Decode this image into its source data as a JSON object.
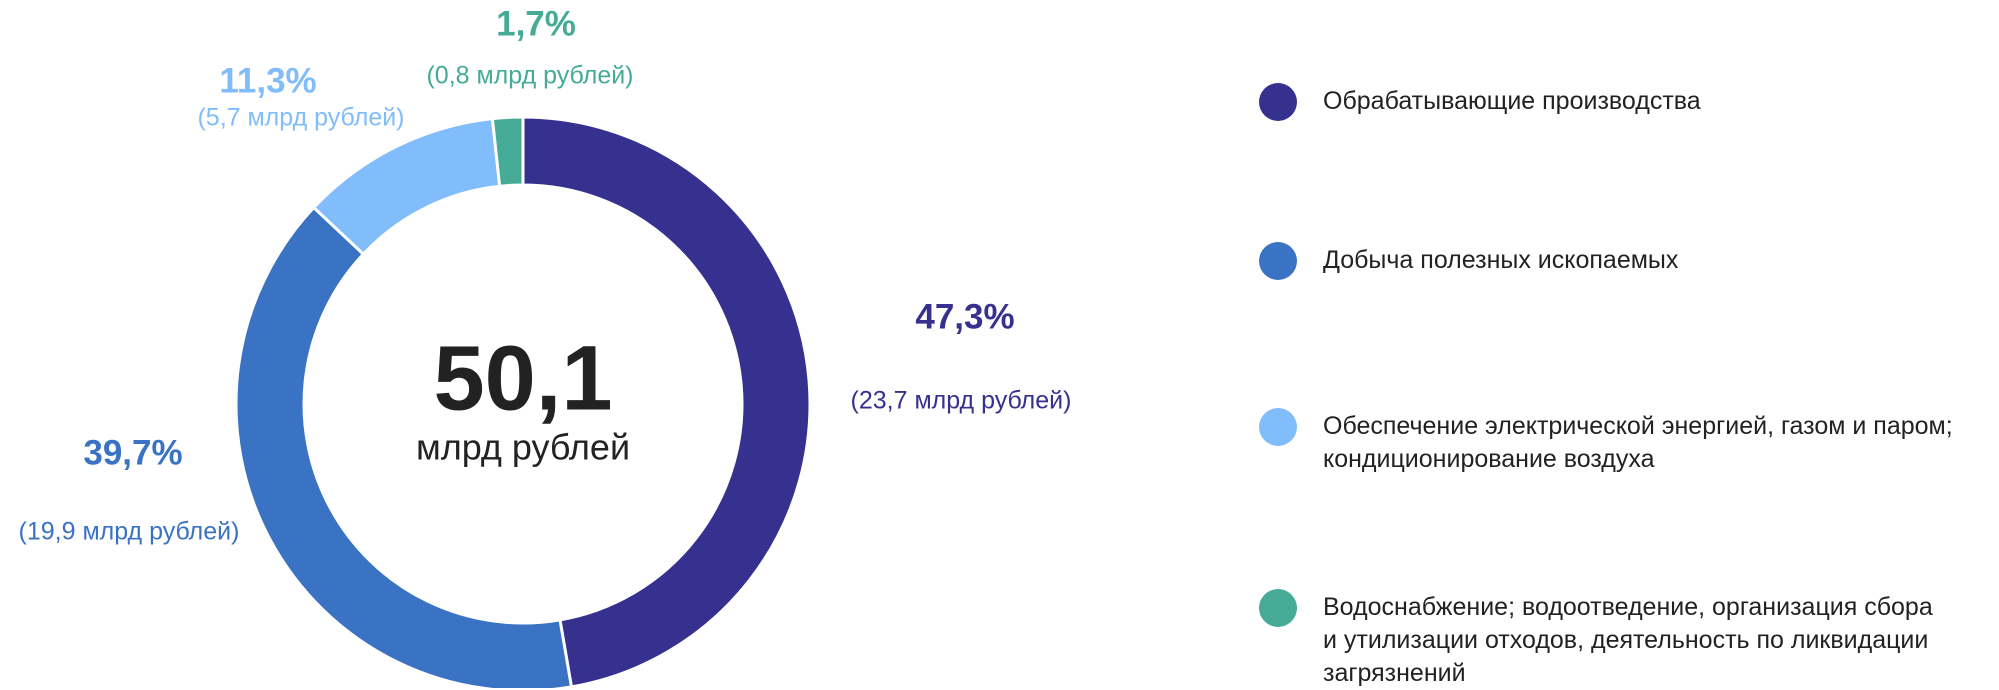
{
  "chart_data": {
    "type": "donut",
    "categories": [
      "Обрабатывающие производства",
      "Добыча полезных ископаемых",
      "Обеспечение электрической энергией, газом и паром;\nкондиционирование воздуха",
      "Водоснабжение; водоотведение, организация сбора\nи утилизации отходов, деятельность по ликвидации\nзагрязнений"
    ],
    "values": [
      47.3,
      39.7,
      11.3,
      1.7
    ],
    "value_labels": [
      "47,3%",
      "39,7%",
      "11,3%",
      "1,7%"
    ],
    "amounts": [
      23.7,
      19.9,
      5.7,
      0.8
    ],
    "amount_labels": [
      "(23,7 млрд рублей)",
      "(19,9 млрд рублей)",
      "(5,7 млрд рублей)",
      "(0,8 млрд рублей)"
    ],
    "colors": [
      "#36308f",
      "#3a72c4",
      "#80bdfa",
      "#45ab97"
    ],
    "center_value": 50.1,
    "center_value_label": "50,1",
    "center_unit": "млрд рублей"
  }
}
